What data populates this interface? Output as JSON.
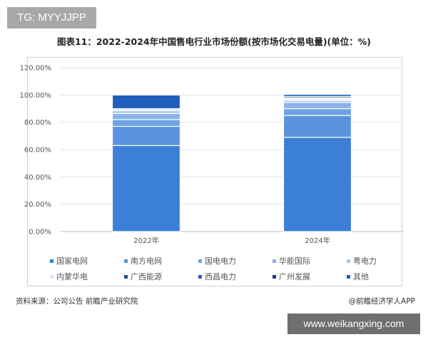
{
  "watermark_top": "TG: MYYJJPP",
  "watermark_bottom": "www.weikangxing.com",
  "source": "资料来源：公司公告 前瞻产业研究院",
  "credit": "@前瞻经济学人APP",
  "chart_data": {
    "type": "bar",
    "stacked": true,
    "title": "图表11：2022-2024年中国售电行业市场份额(按市场化交易电量)(单位：%)",
    "xlabel": "",
    "ylabel": "",
    "ylim": [
      0,
      120
    ],
    "yticks": [
      "0.00%",
      "20.00%",
      "40.00%",
      "60.00%",
      "80.00%",
      "100.00%",
      "120.00%"
    ],
    "grid": true,
    "legend_position": "bottom",
    "categories": [
      "2022年",
      "2024年"
    ],
    "series": [
      {
        "name": "国家电网",
        "color": "#3b7fd8",
        "values": [
          63,
          69
        ]
      },
      {
        "name": "南方电网",
        "color": "#5a93e0",
        "values": [
          14,
          16
        ]
      },
      {
        "name": "国电电力",
        "color": "#6ea2e4",
        "values": [
          5,
          5
        ]
      },
      {
        "name": "华能国际",
        "color": "#8ab3ea",
        "values": [
          4.5,
          4.5
        ]
      },
      {
        "name": "粤电力",
        "color": "#a9c8f0",
        "values": [
          2,
          1.5
        ]
      },
      {
        "name": "内蒙华电",
        "color": "#d6e5f7",
        "values": [
          1.5,
          1
        ]
      },
      {
        "name": "广西能源",
        "color": "#1e4e9c",
        "values": [
          0,
          0.5
        ]
      },
      {
        "name": "西昌电力",
        "color": "#2b5cab",
        "values": [
          0,
          0.5
        ]
      },
      {
        "name": "广州发展",
        "color": "#1b3f82",
        "values": [
          0,
          1
        ]
      },
      {
        "name": "其他",
        "color": "#1f5fbb",
        "values": [
          10,
          1.5
        ]
      }
    ]
  }
}
